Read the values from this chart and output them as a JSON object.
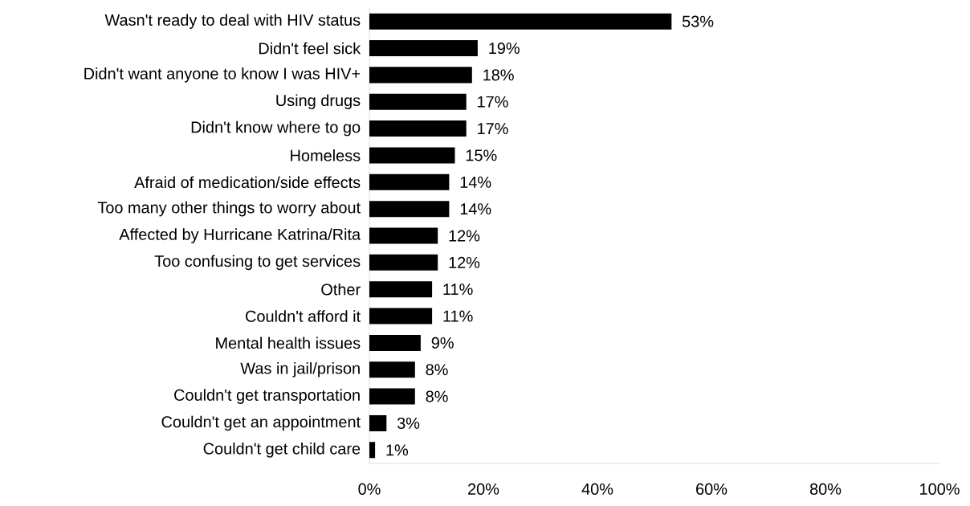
{
  "chart_data": {
    "type": "bar",
    "orientation": "horizontal",
    "categories": [
      "Wasn't ready to deal with HIV status",
      "Didn't feel sick",
      "Didn't want anyone to know I was HIV+",
      "Using drugs",
      "Didn't know where to go",
      "Homeless",
      "Afraid of medication/side effects",
      "Too many other things to worry about",
      "Affected by Hurricane Katrina/Rita",
      "Too confusing to get services",
      "Other",
      "Couldn't afford it",
      "Mental health issues",
      "Was in jail/prison",
      "Couldn't get transportation",
      "Couldn't get an appointment",
      "Couldn't get child care"
    ],
    "values": [
      53,
      19,
      18,
      17,
      17,
      15,
      14,
      14,
      12,
      12,
      11,
      11,
      9,
      8,
      8,
      3,
      1
    ],
    "value_labels": [
      "53%",
      "19%",
      "18%",
      "17%",
      "17%",
      "15%",
      "14%",
      "14%",
      "12%",
      "12%",
      "11%",
      "11%",
      "9%",
      "8%",
      "8%",
      "3%",
      "1%"
    ],
    "color": "#000000",
    "xlim": [
      0,
      100
    ],
    "xticks": [
      {
        "value": 0,
        "label": "0%"
      },
      {
        "value": 20,
        "label": "20%"
      },
      {
        "value": 40,
        "label": "40%"
      },
      {
        "value": 60,
        "label": "60%"
      },
      {
        "value": 80,
        "label": "80%"
      },
      {
        "value": 100,
        "label": "100%"
      }
    ],
    "grid": false
  }
}
